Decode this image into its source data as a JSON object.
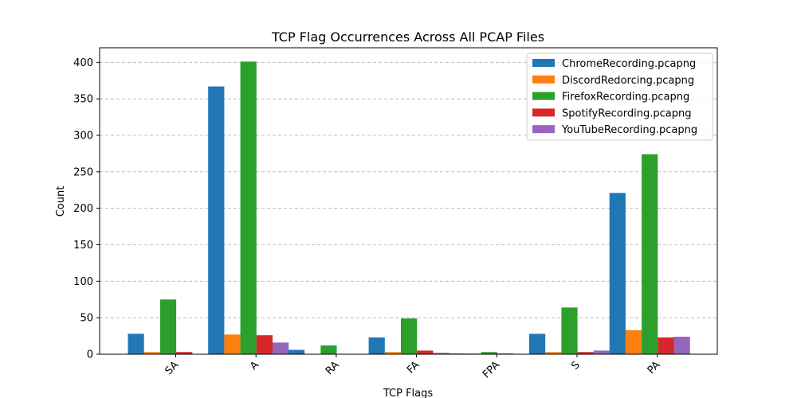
{
  "chart_data": {
    "type": "bar",
    "title": "TCP Flag Occurrences Across All PCAP Files",
    "xlabel": "TCP Flags",
    "ylabel": "Count",
    "categories": [
      "SA",
      "A",
      "RA",
      "FA",
      "FPA",
      "S",
      "PA"
    ],
    "ylim": [
      0,
      420
    ],
    "yticks": [
      0,
      50,
      100,
      150,
      200,
      250,
      300,
      350,
      400
    ],
    "grid": "y-dashed",
    "legend_position": "top-right",
    "series": [
      {
        "name": "ChromeRecording.pcapng",
        "color": "#1f77b4",
        "values": [
          28,
          367,
          6,
          23,
          1,
          28,
          221
        ]
      },
      {
        "name": "DiscordRedorcing.pcapng",
        "color": "#ff7f0e",
        "values": [
          3,
          27,
          0,
          3,
          1,
          3,
          33
        ]
      },
      {
        "name": "FirefoxRecording.pcapng",
        "color": "#2ca02c",
        "values": [
          75,
          401,
          12,
          49,
          3,
          64,
          274
        ]
      },
      {
        "name": "SpotifyRecording.pcapng",
        "color": "#d62728",
        "values": [
          3,
          26,
          0,
          5,
          1,
          3,
          23
        ]
      },
      {
        "name": "YouTubeRecording.pcapng",
        "color": "#9467bd",
        "values": [
          0,
          16,
          0,
          2,
          0,
          5,
          24
        ]
      }
    ]
  }
}
